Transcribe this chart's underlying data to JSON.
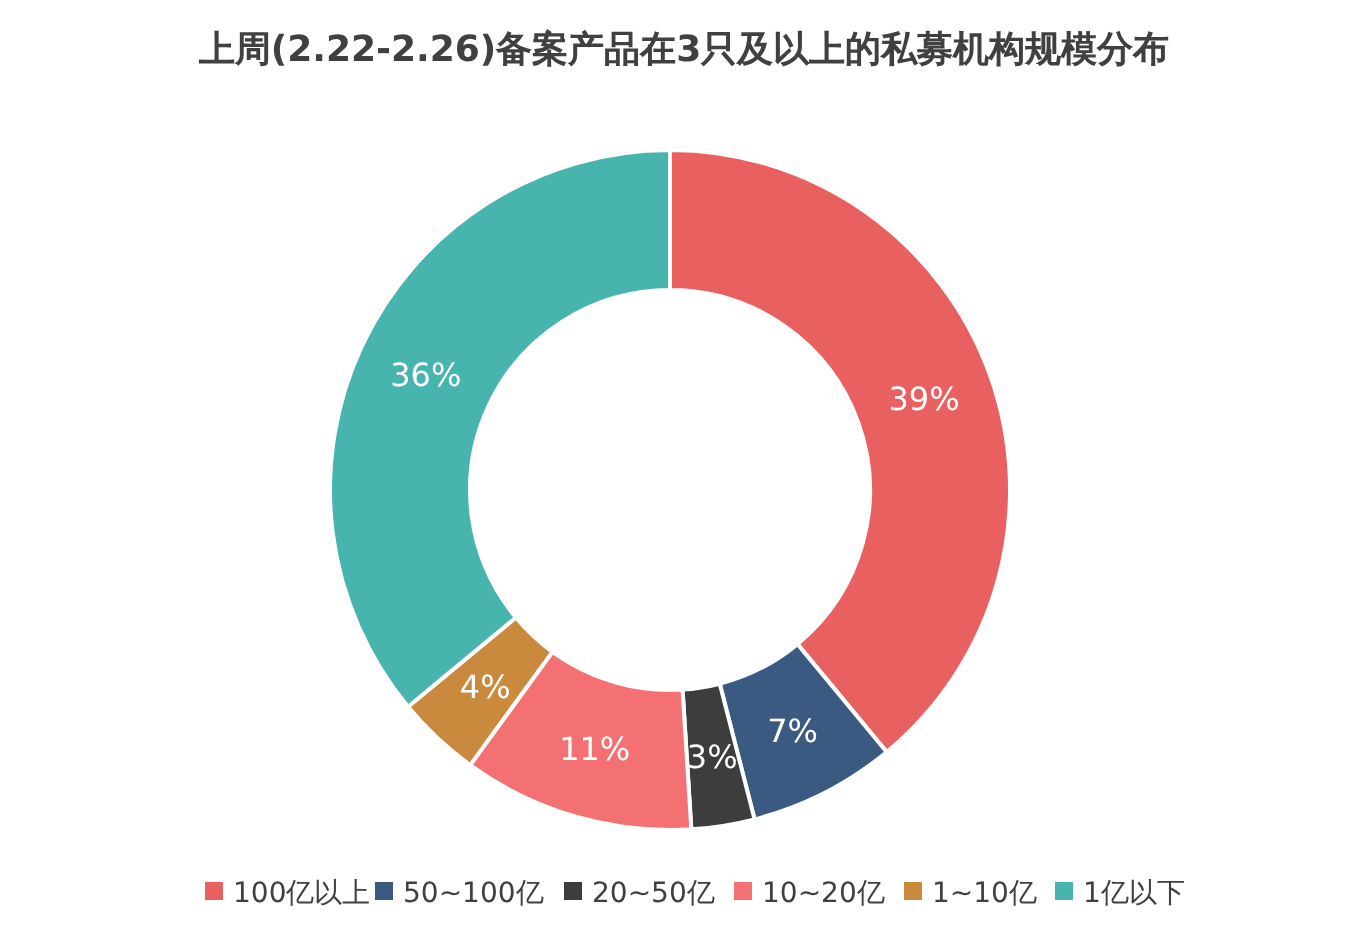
{
  "chart_data": {
    "type": "donut",
    "title": "上周(2.22-2.26)备案产品在3只及以上的私募机构规模分布",
    "categories": [
      "100亿以上",
      "50~100亿",
      "20~50亿",
      "10~20亿",
      "1~10亿",
      "1亿以下"
    ],
    "values": [
      39,
      7,
      3,
      11,
      4,
      36
    ],
    "colors": [
      "#e8605f",
      "#3a5a82",
      "#3d3d3d",
      "#f37172",
      "#c98a3e",
      "#47b5ae"
    ],
    "value_labels": [
      "39%",
      "7%",
      "3%",
      "11%",
      "4%",
      "36%"
    ],
    "legend": "bottom"
  }
}
